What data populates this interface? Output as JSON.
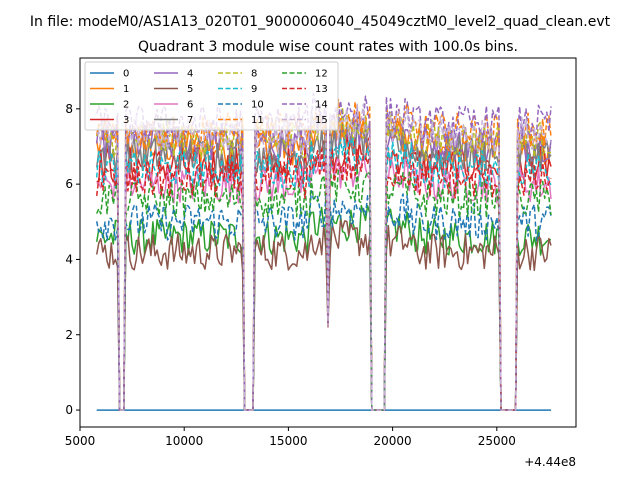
{
  "suptitle": "In file: modeM0/AS1A13_020T01_9000006040_45049cztM0_level2_quad_clean.evt",
  "chart_data": {
    "type": "line",
    "title": "Quadrant 3 module wise count rates with 100.0s bins.",
    "xlabel": "",
    "ylabel": "",
    "x_offset_label": "+4.44e8",
    "xlim": [
      5000,
      28800
    ],
    "ylim": [
      -0.45,
      9.35
    ],
    "xticks": [
      5000,
      10000,
      15000,
      20000,
      25000
    ],
    "yticks": [
      0,
      2,
      4,
      6,
      8
    ],
    "grid": false,
    "legend": {
      "placement": "top-left",
      "columns": 4
    },
    "x_range": [
      5800,
      27600
    ],
    "gaps": [
      [
        6900,
        7100
      ],
      [
        12900,
        13300
      ],
      [
        19000,
        19600
      ],
      [
        25200,
        25900
      ]
    ],
    "dips": [
      16900
    ],
    "series": [
      {
        "name": "0",
        "color": "#1f77b4",
        "style": "solid",
        "level": 0.0
      },
      {
        "name": "1",
        "color": "#ff7f0e",
        "style": "solid",
        "level": 7.0
      },
      {
        "name": "2",
        "color": "#2ca02c",
        "style": "solid",
        "level": 4.6
      },
      {
        "name": "3",
        "color": "#d62728",
        "style": "solid",
        "level": 6.5
      },
      {
        "name": "4",
        "color": "#9467bd",
        "style": "solid",
        "level": 7.1
      },
      {
        "name": "5",
        "color": "#8c564b",
        "style": "solid",
        "level": 4.2
      },
      {
        "name": "6",
        "color": "#e377c2",
        "style": "solid",
        "level": 6.0
      },
      {
        "name": "7",
        "color": "#7f7f7f",
        "style": "solid",
        "level": 6.8
      },
      {
        "name": "8",
        "color": "#bcbd22",
        "style": "dashed",
        "level": 7.2
      },
      {
        "name": "9",
        "color": "#17becf",
        "style": "dashed",
        "level": 6.4
      },
      {
        "name": "10",
        "color": "#1f77b4",
        "style": "dashed",
        "level": 5.0
      },
      {
        "name": "11",
        "color": "#ff7f0e",
        "style": "dashed",
        "level": 7.4
      },
      {
        "name": "12",
        "color": "#2ca02c",
        "style": "dashed",
        "level": 5.6
      },
      {
        "name": "13",
        "color": "#d62728",
        "style": "dashed",
        "level": 6.1
      },
      {
        "name": "14",
        "color": "#9467bd",
        "style": "dashed",
        "level": 7.6
      },
      {
        "name": "15",
        "color": "#c5b0d5",
        "style": "dashed",
        "level": 7.3
      }
    ]
  }
}
